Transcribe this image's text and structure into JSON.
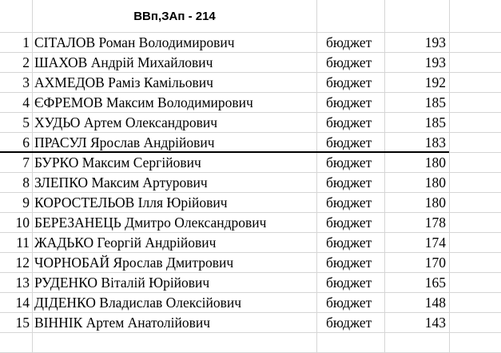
{
  "sheet": {
    "title": "ВВп,ЗАп - 214",
    "rows": [
      {
        "n": "1",
        "name": "СІТАЛОВ Роман Володимирович",
        "funding": "бюджет",
        "score": "193"
      },
      {
        "n": "2",
        "name": "ШАХОВ Андрій Михайлович",
        "funding": "бюджет",
        "score": "193"
      },
      {
        "n": "3",
        "name": "АХМЕДОВ Раміз Камільович",
        "funding": "бюджет",
        "score": "192"
      },
      {
        "n": "4",
        "name": "ЄФРЕМОВ Максим Володимирович",
        "funding": "бюджет",
        "score": "185"
      },
      {
        "n": "5",
        "name": "ХУДЬО Артем Олександрович",
        "funding": "бюджет",
        "score": "185"
      },
      {
        "n": "6",
        "name": "ПРАСУЛ Ярослав Андрійович",
        "funding": "бюджет",
        "score": "183"
      },
      {
        "n": "7",
        "name": "БУРКО Максим Сергійович",
        "funding": "бюджет",
        "score": "180"
      },
      {
        "n": "8",
        "name": "ЗЛЕПКО Максим Артурович",
        "funding": "бюджет",
        "score": "180"
      },
      {
        "n": "9",
        "name": "КОРОСТЕЛЬОВ Ілля Юрійович",
        "funding": "бюджет",
        "score": "180"
      },
      {
        "n": "10",
        "name": "БЕРЕЗАНЕЦЬ Дмитро Олександрович",
        "funding": "бюджет",
        "score": "178"
      },
      {
        "n": "11",
        "name": "ЖАДЬКО Георгій Андрійович",
        "funding": "бюджет",
        "score": "174"
      },
      {
        "n": "12",
        "name": "ЧОРНОБАЙ Ярослав Дмитрович",
        "funding": "бюджет",
        "score": "170"
      },
      {
        "n": "13",
        "name": "РУДЕНКО Віталій Юрійович",
        "funding": "бюджет",
        "score": "165"
      },
      {
        "n": "14",
        "name": "ДІДЕНКО Владислав Олексійович",
        "funding": "бюджет",
        "score": "148"
      },
      {
        "n": "15",
        "name": "ВІННІК Артем Анатолійович",
        "funding": "бюджет",
        "score": "143"
      }
    ]
  }
}
